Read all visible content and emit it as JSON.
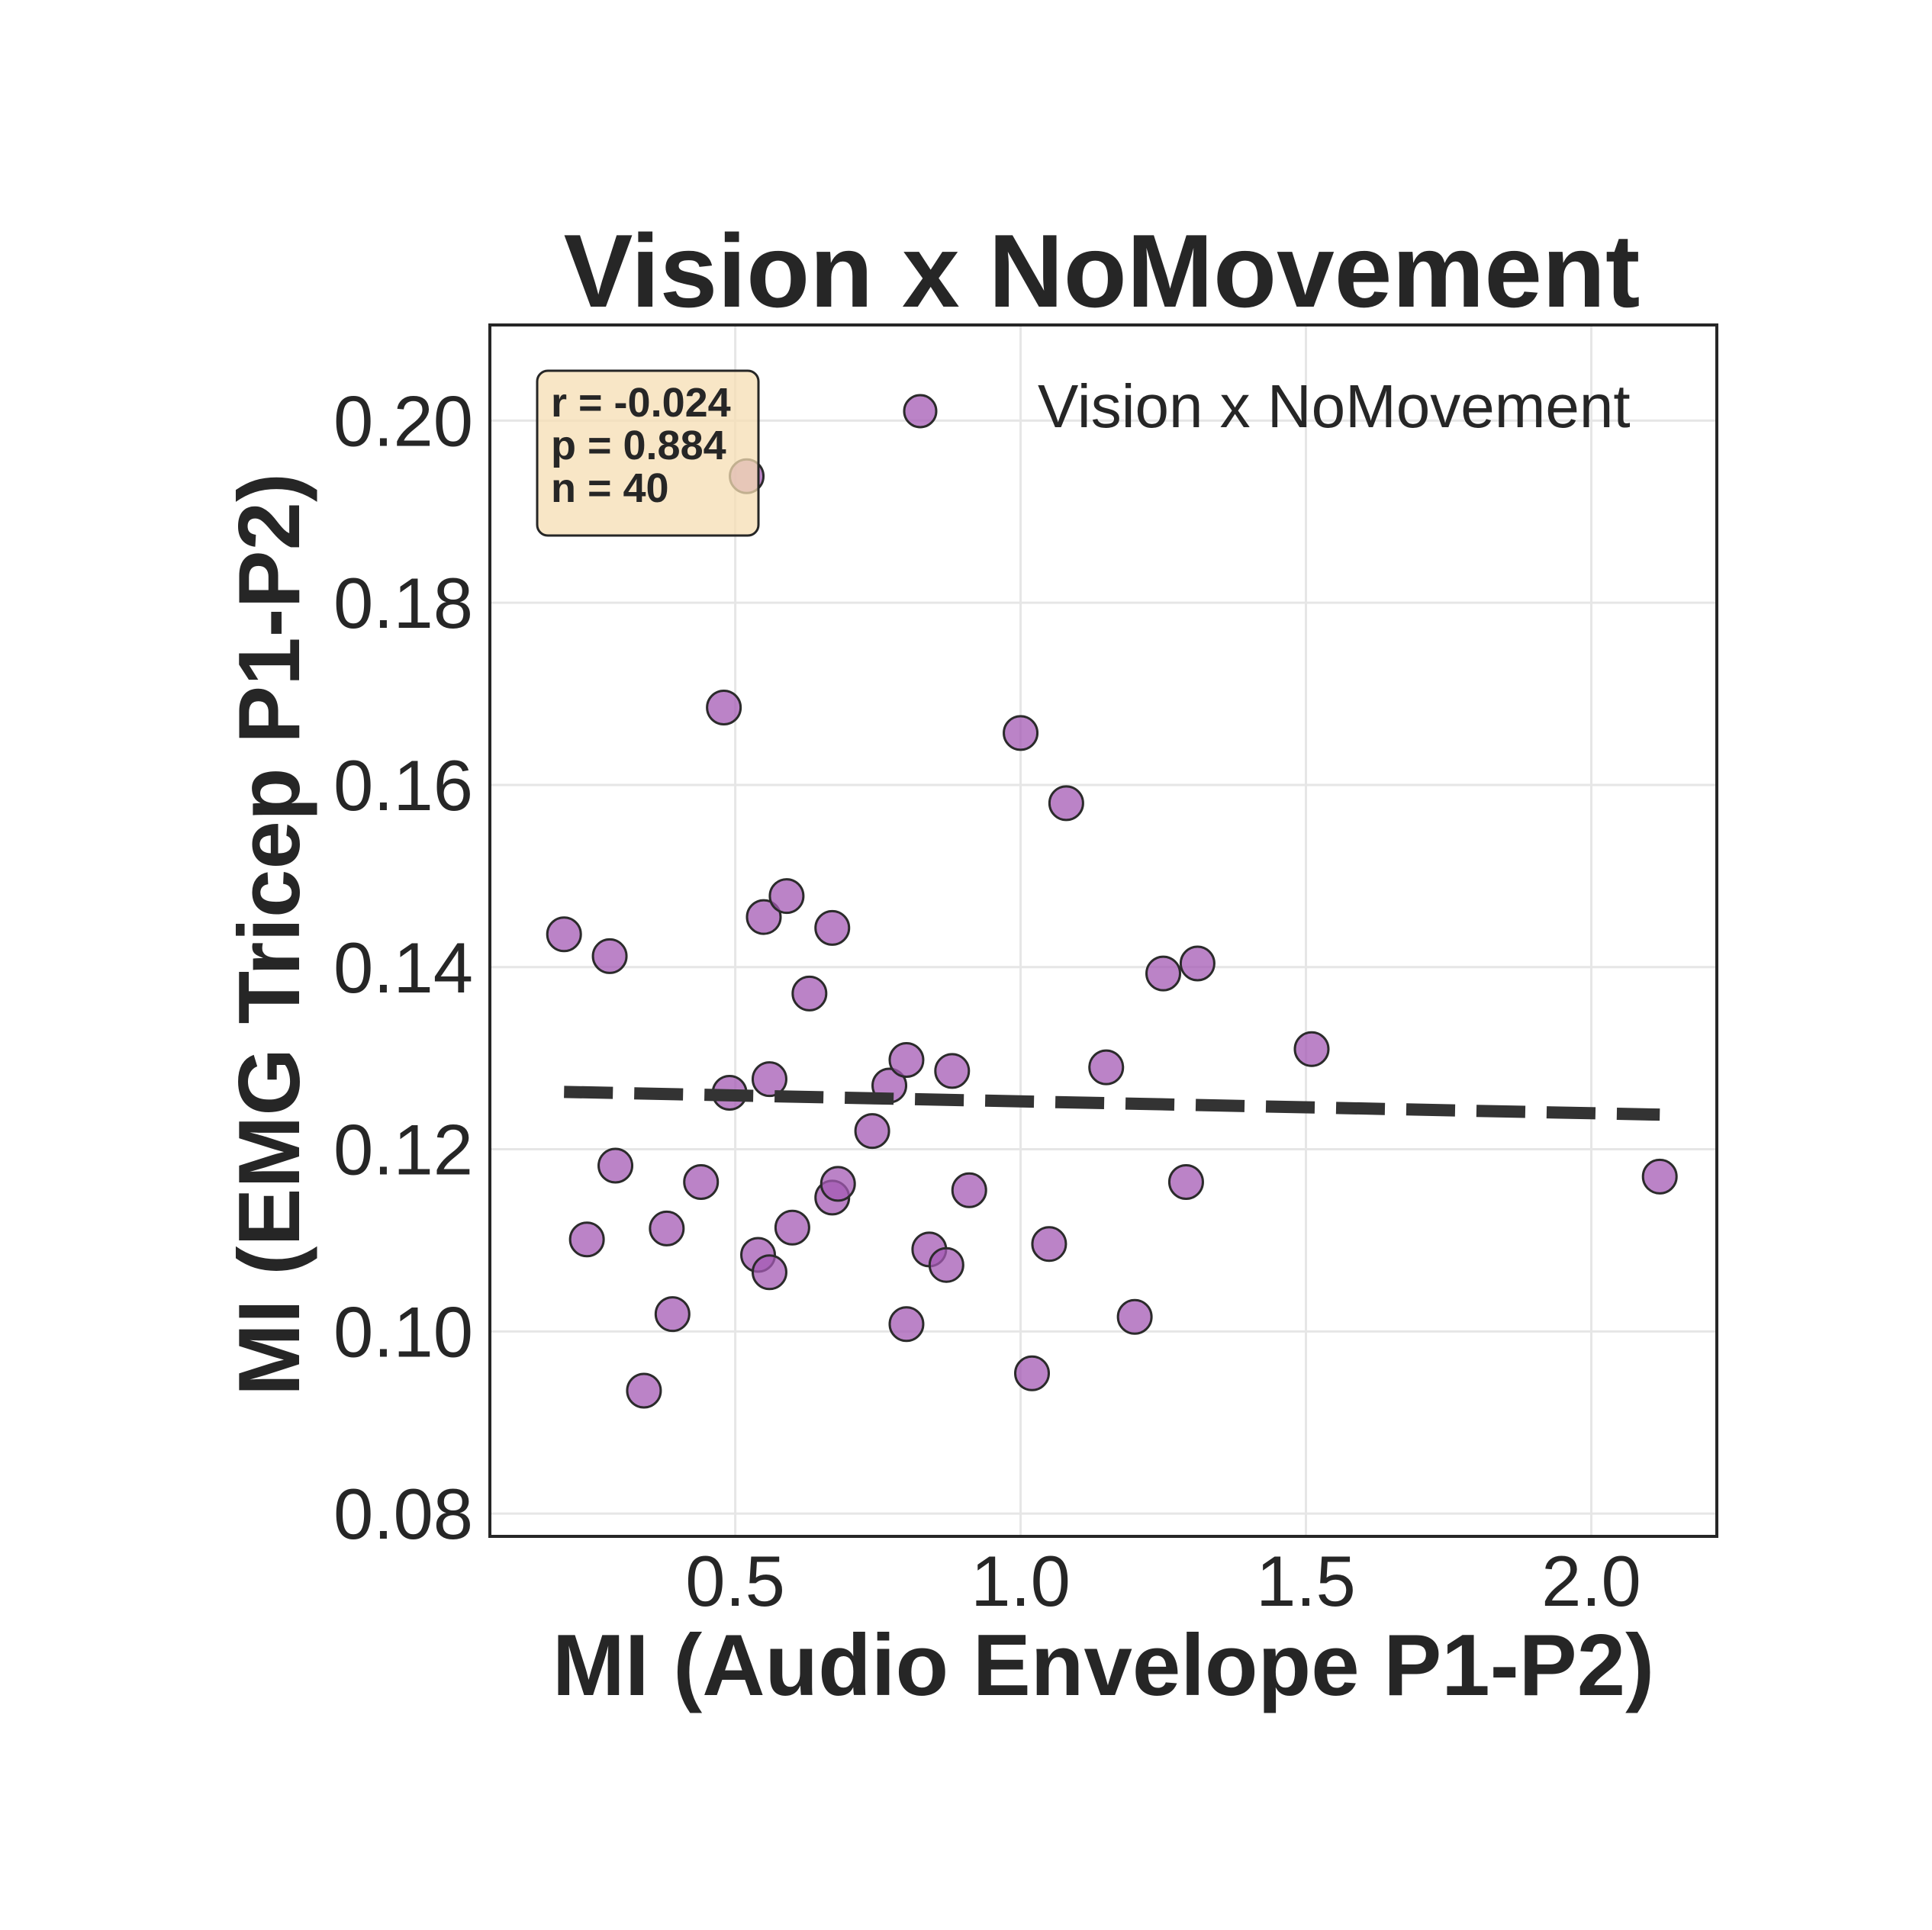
{
  "chart_data": {
    "type": "scatter",
    "title": "Vision x NoMovement",
    "xlabel": "MI (Audio Envelope P1-P2)",
    "ylabel": "MI (EMG Tricep P1-P2)",
    "xlim": [
      0.07,
      2.22
    ],
    "ylim": [
      0.0775,
      0.2105
    ],
    "xticks": [
      0.5,
      1.0,
      1.5,
      2.0
    ],
    "xtick_labels": [
      "0.5",
      "1.0",
      "1.5",
      "2.0"
    ],
    "yticks": [
      0.08,
      0.1,
      0.12,
      0.14,
      0.16,
      0.18,
      0.2
    ],
    "ytick_labels": [
      "0.08",
      "0.10",
      "0.12",
      "0.14",
      "0.16",
      "0.18",
      "0.20"
    ],
    "grid": true,
    "legend": {
      "position": "top-right"
    },
    "series": [
      {
        "name": "Vision x NoMovement",
        "color": "#a45ab4",
        "edge_color": "#2b2b2b",
        "points": [
          [
            0.2,
            0.1436
          ],
          [
            0.28,
            0.1412
          ],
          [
            0.29,
            0.1182
          ],
          [
            0.24,
            0.1101
          ],
          [
            0.34,
            0.0935
          ],
          [
            0.38,
            0.1113
          ],
          [
            0.39,
            0.1019
          ],
          [
            0.44,
            0.1164
          ],
          [
            0.48,
            0.1685
          ],
          [
            0.49,
            0.1262
          ],
          [
            0.52,
            0.1939
          ],
          [
            0.54,
            0.1084
          ],
          [
            0.55,
            0.1455
          ],
          [
            0.56,
            0.1065
          ],
          [
            0.56,
            0.1277
          ],
          [
            0.59,
            0.1478
          ],
          [
            0.6,
            0.1114
          ],
          [
            0.63,
            0.1371
          ],
          [
            0.67,
            0.1443
          ],
          [
            0.67,
            0.1147
          ],
          [
            0.68,
            0.1162
          ],
          [
            0.74,
            0.122
          ],
          [
            0.77,
            0.127
          ],
          [
            0.8,
            0.1298
          ],
          [
            0.8,
            0.1008
          ],
          [
            0.84,
            0.109
          ],
          [
            0.87,
            0.1073
          ],
          [
            0.88,
            0.1286
          ],
          [
            0.91,
            0.1155
          ],
          [
            1.0,
            0.1657
          ],
          [
            1.02,
            0.0954
          ],
          [
            1.05,
            0.1096
          ],
          [
            1.08,
            0.158
          ],
          [
            1.15,
            0.129
          ],
          [
            1.2,
            0.1016
          ],
          [
            1.25,
            0.1393
          ],
          [
            1.29,
            0.1164
          ],
          [
            1.31,
            0.1404
          ],
          [
            1.51,
            0.131
          ],
          [
            2.12,
            0.117
          ]
        ]
      }
    ],
    "trendline": {
      "style": "dashed",
      "color": "#333333",
      "x": [
        0.2,
        2.12
      ],
      "y": [
        0.1263,
        0.1238
      ]
    },
    "stats_box": {
      "lines": [
        "r = -0.024",
        "p = 0.884",
        "n = 40"
      ],
      "background": "#f5deb3"
    }
  }
}
